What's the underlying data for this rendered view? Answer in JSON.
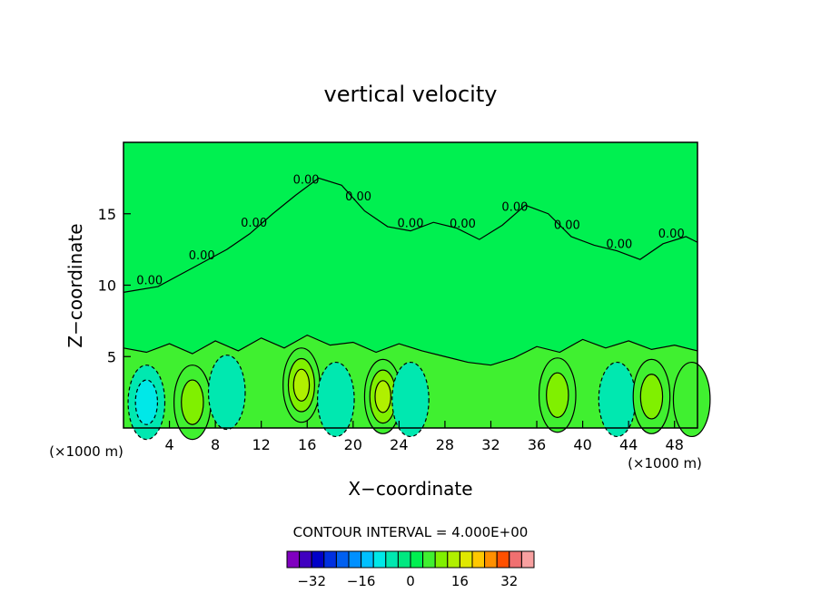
{
  "chart_data": {
    "type": "heatmap",
    "title": "vertical velocity",
    "xlabel": "X−coordinate",
    "ylabel": "Z−coordinate",
    "x_unit_left": "(×1000 m)",
    "x_unit_right": "(×1000 m)",
    "xlim": [
      0,
      50
    ],
    "ylim": [
      0,
      20
    ],
    "x_ticks": [
      4,
      8,
      12,
      16,
      20,
      24,
      28,
      32,
      36,
      40,
      44,
      48
    ],
    "x_tick_labels": [
      "4",
      "8",
      "12",
      "16",
      "20",
      "24",
      "28",
      "32",
      "36",
      "40",
      "44",
      "48"
    ],
    "y_ticks": [
      5,
      10,
      15
    ],
    "y_tick_labels": [
      "5",
      "10",
      "15"
    ],
    "contour_label": "0.00",
    "contour_label_count": 11,
    "contour_interval_text": "CONTOUR INTERVAL = 4.000E+00",
    "colorbar": {
      "min": -40,
      "max": 40,
      "interval": 4,
      "tick_values": [
        -32,
        -16,
        0,
        16,
        32
      ],
      "tick_labels": [
        "−32",
        "−16",
        "0",
        "16",
        "32"
      ],
      "colors": [
        "#8000c0",
        "#4000c0",
        "#0000c8",
        "#0030e0",
        "#0060f0",
        "#0090ff",
        "#00c0ff",
        "#00e8e8",
        "#00e8b0",
        "#00e880",
        "#00f050",
        "#40f030",
        "#80f000",
        "#b0f000",
        "#e0e800",
        "#ffc800",
        "#ff9000",
        "#ff5000",
        "#f07070",
        "#f8a0a0"
      ]
    },
    "features": [
      {
        "x": 2.0,
        "z": 1.8,
        "value": -8,
        "kind": "downdraft"
      },
      {
        "x": 6.0,
        "z": 1.8,
        "value": 8,
        "kind": "updraft"
      },
      {
        "x": 9.0,
        "z": 2.5,
        "value": -4,
        "kind": "downdraft"
      },
      {
        "x": 15.5,
        "z": 3.0,
        "value": 12,
        "kind": "updraft"
      },
      {
        "x": 18.5,
        "z": 2.0,
        "value": -4,
        "kind": "downdraft"
      },
      {
        "x": 22.6,
        "z": 2.2,
        "value": 12,
        "kind": "updraft"
      },
      {
        "x": 25.0,
        "z": 2.0,
        "value": -4,
        "kind": "downdraft"
      },
      {
        "x": 37.8,
        "z": 2.3,
        "value": 8,
        "kind": "updraft"
      },
      {
        "x": 43.0,
        "z": 2.0,
        "value": -4,
        "kind": "downdraft"
      },
      {
        "x": 46.0,
        "z": 2.2,
        "value": 8,
        "kind": "updraft"
      },
      {
        "x": 49.5,
        "z": 2.0,
        "value": 4,
        "kind": "updraft"
      }
    ]
  }
}
